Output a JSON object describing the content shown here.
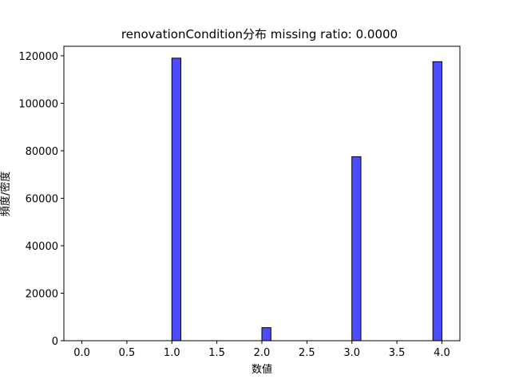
{
  "chart_data": {
    "type": "bar",
    "title": "renovationCondition分布  missing ratio: 0.0000",
    "xlabel": "数値",
    "ylabel": "頻度/密度",
    "xlim": [
      -0.2,
      4.2
    ],
    "ylim": [
      0,
      124000
    ],
    "x_ticks": [
      "0.0",
      "0.5",
      "1.0",
      "1.5",
      "2.0",
      "2.5",
      "3.0",
      "3.5",
      "4.0"
    ],
    "y_ticks": [
      "0",
      "20000",
      "40000",
      "60000",
      "80000",
      "100000",
      "120000"
    ],
    "bin_width": 0.1,
    "bars": [
      {
        "x": 1.0,
        "value": 119000
      },
      {
        "x": 2.0,
        "value": 5500
      },
      {
        "x": 3.0,
        "value": 77500
      },
      {
        "x": 3.9,
        "value": 117500
      }
    ],
    "bar_color": "#0000ff",
    "bar_alpha": 0.7,
    "edge_color": "#000000",
    "grid": false
  }
}
